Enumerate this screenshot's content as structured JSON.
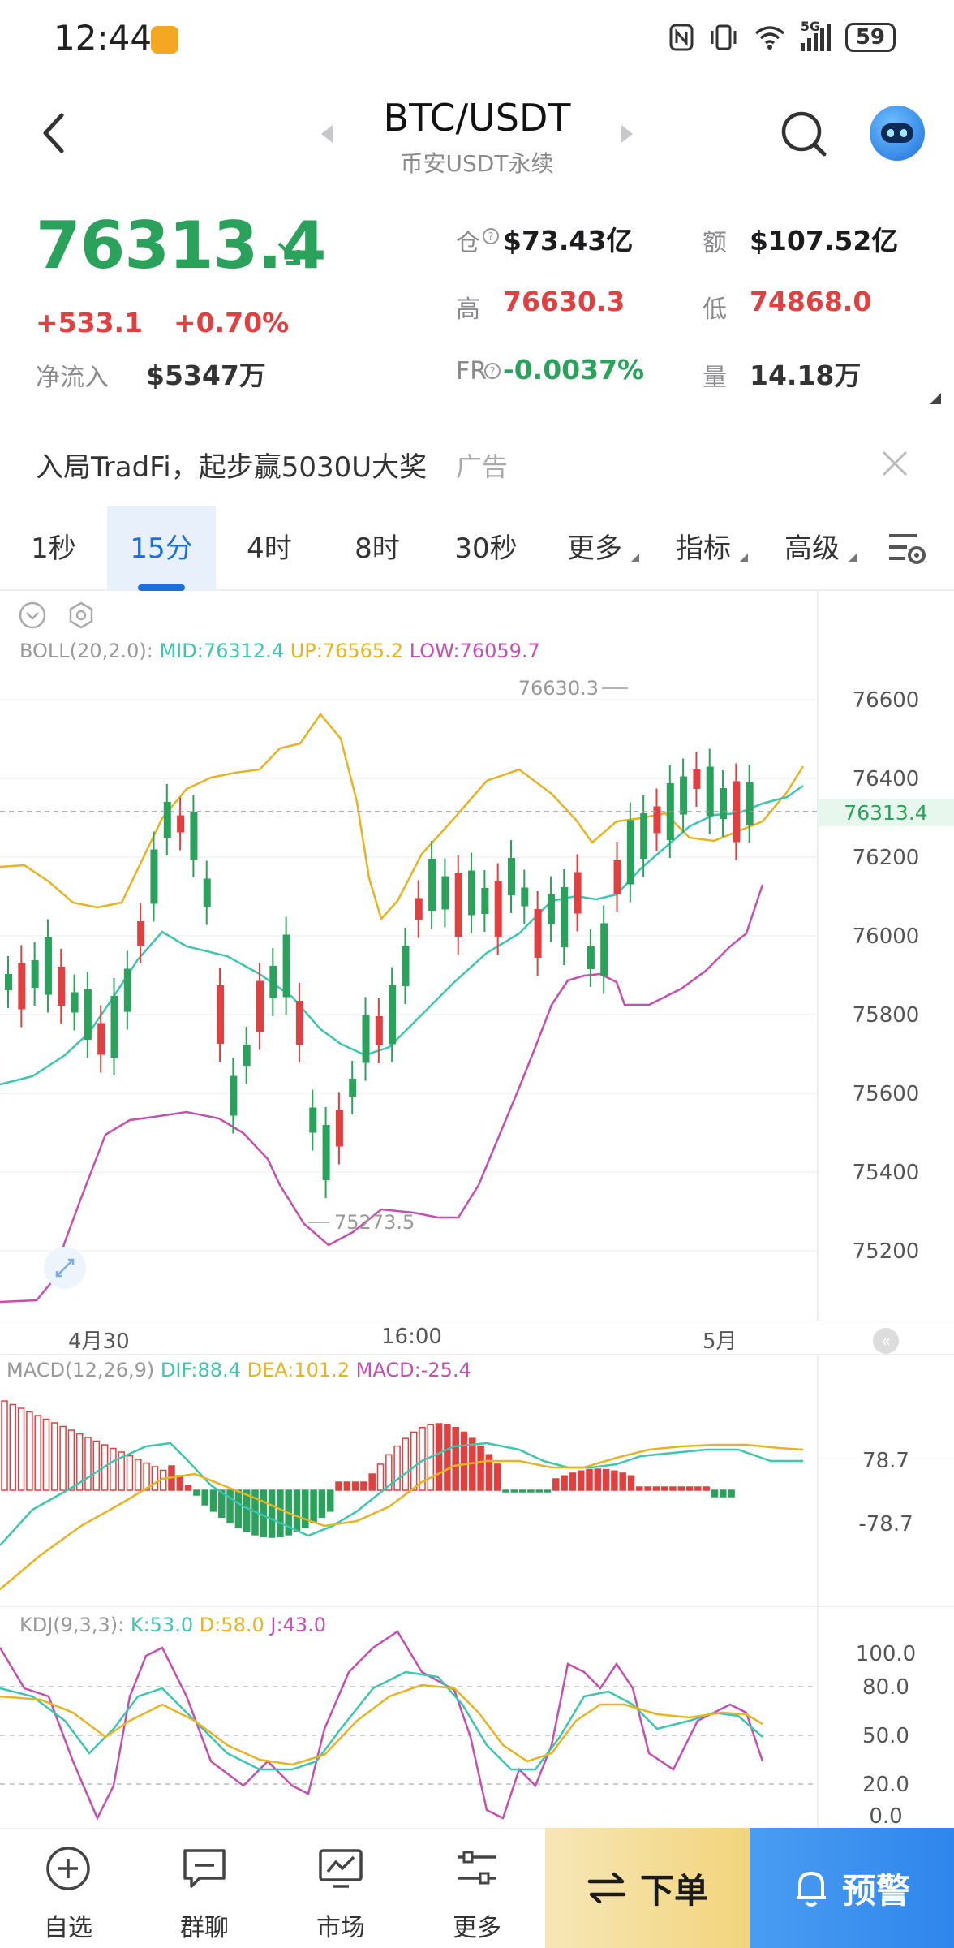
{
  "status_bar": {
    "time": "12:44",
    "network": "5G",
    "battery": "59"
  },
  "header": {
    "title": "BTC/USDT",
    "subtitle": "币安USDT永续"
  },
  "ticker": {
    "price": "76313.4",
    "change": "+533.1",
    "change_pct": "+0.70%",
    "netflow_label": "净流入",
    "netflow_value": "$5347万",
    "oi_label": "仓",
    "oi_value": "$73.43亿",
    "amount_label": "额",
    "amount_value": "$107.52亿",
    "high_label": "高",
    "high_value": "76630.3",
    "low_label": "低",
    "low_value": "74868.0",
    "fr_label": "FR",
    "fr_value": "-0.0037%",
    "vol_label": "量",
    "vol_value": "14.18万"
  },
  "ad": {
    "text": "入局TradFi，起步赢5030U大奖",
    "tag": "广告"
  },
  "tabs": [
    {
      "label": "1秒"
    },
    {
      "label": "15分"
    },
    {
      "label": "4时"
    },
    {
      "label": "8时"
    },
    {
      "label": "30秒"
    },
    {
      "label": "更多"
    },
    {
      "label": "指标"
    },
    {
      "label": "高级"
    }
  ],
  "boll": {
    "name": "BOLL(20,2.0):",
    "mid": "MID:76312.4",
    "up": "UP:76565.2",
    "low": "LOW:76059.7"
  },
  "price_chart": {
    "y_ticks": [
      "76600",
      "76400",
      "76200",
      "76000",
      "75800",
      "75600",
      "75400",
      "75200"
    ],
    "current_price_tag": "76313.4",
    "high_marker": "76630.3",
    "low_marker": "75273.5",
    "x_labels": [
      "4月30",
      "16:00",
      "5月"
    ]
  },
  "macd": {
    "name": "MACD(12,26,9)",
    "dif": "DIF:88.4",
    "dea": "DEA:101.2",
    "macd": "MACD:-25.4",
    "y_ticks": [
      "78.7",
      "-78.7"
    ]
  },
  "kdj": {
    "name": "KDJ(9,3,3):",
    "k": "K:53.0",
    "d": "D:58.0",
    "j": "J:43.0",
    "y_ticks": [
      "100.0",
      "80.0",
      "50.0",
      "20.0",
      "0.0"
    ]
  },
  "nav": {
    "items": [
      {
        "label": "自选",
        "icon": "plus-circle-icon"
      },
      {
        "label": "群聊",
        "icon": "chat-icon"
      },
      {
        "label": "市场",
        "icon": "chart-monitor-icon"
      },
      {
        "label": "更多",
        "icon": "sliders-icon"
      }
    ],
    "order_label": "下单",
    "alert_label": "预警"
  },
  "colors": {
    "up_green": "#2aa25b",
    "down_red": "#e0403f",
    "accent_blue": "#1d6fdc",
    "boll_mid": "#3ec5b0",
    "boll_up": "#e8b321",
    "boll_low": "#c54fb0"
  }
}
